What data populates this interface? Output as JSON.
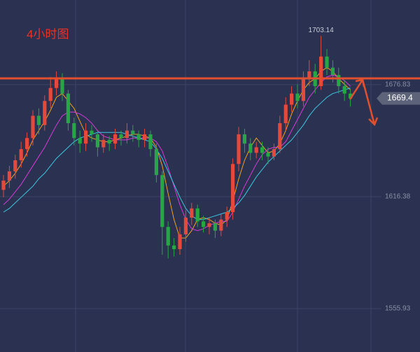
{
  "chart_data": {
    "type": "candlestick",
    "title": "4小时图",
    "categories": [
      null,
      null,
      null,
      null,
      null,
      null,
      null,
      null,
      null,
      null,
      null,
      null,
      null,
      null,
      null,
      null,
      null,
      null,
      null,
      null,
      null,
      null,
      null,
      null,
      null,
      null,
      null,
      null,
      null,
      null,
      null,
      null,
      null,
      null,
      null,
      null,
      null,
      null,
      null,
      null,
      null,
      null,
      null,
      null,
      null,
      null,
      null,
      null,
      null,
      null,
      null,
      null,
      null,
      null,
      null,
      null,
      null,
      null,
      null,
      null
    ],
    "open": [
      1620,
      1625,
      1630,
      1636,
      1642,
      1648,
      1660,
      1655,
      1668,
      1675,
      1680,
      1672,
      1656,
      1648,
      1645,
      1652,
      1650,
      1643,
      1647,
      1645,
      1650,
      1648,
      1652,
      1650,
      1647,
      1650,
      1642,
      1628,
      1600,
      1590,
      1588,
      1596,
      1605,
      1610,
      1603,
      1600,
      1602,
      1598,
      1604,
      1608,
      1634,
      1650,
      1645,
      1640,
      1643,
      1640,
      1638,
      1642,
      1656,
      1666,
      1672,
      1668,
      1680,
      1684,
      1676,
      1692,
      1686,
      1682,
      1676,
      1672
    ],
    "high": [
      1628,
      1633,
      1639,
      1646,
      1651,
      1663,
      1664,
      1671,
      1681,
      1684,
      1683,
      1674,
      1659,
      1652,
      1656,
      1655,
      1652,
      1650,
      1649,
      1653,
      1652,
      1656,
      1655,
      1652,
      1653,
      1652,
      1645,
      1630,
      1603,
      1594,
      1600,
      1609,
      1613,
      1612,
      1606,
      1605,
      1604,
      1607,
      1611,
      1637,
      1654,
      1653,
      1648,
      1646,
      1646,
      1643,
      1645,
      1660,
      1670,
      1676,
      1677,
      1684,
      1690,
      1688,
      1703.14,
      1696,
      1690,
      1686,
      1679,
      1674
    ],
    "low": [
      1616,
      1621,
      1626,
      1632,
      1638,
      1644,
      1650,
      1652,
      1664,
      1671,
      1668,
      1652,
      1644,
      1640,
      1641,
      1646,
      1638,
      1640,
      1641,
      1642,
      1644,
      1645,
      1646,
      1643,
      1643,
      1638,
      1624,
      1585,
      1583,
      1584,
      1585,
      1592,
      1601,
      1600,
      1597,
      1596,
      1594,
      1595,
      1600,
      1604,
      1630,
      1640,
      1636,
      1637,
      1636,
      1634,
      1636,
      1640,
      1652,
      1662,
      1664,
      1665,
      1676,
      1672,
      1674,
      1682,
      1678,
      1672,
      1668,
      1665
    ],
    "close": [
      1625,
      1630,
      1636,
      1642,
      1648,
      1660,
      1655,
      1668,
      1675,
      1680,
      1672,
      1656,
      1648,
      1645,
      1652,
      1650,
      1643,
      1647,
      1645,
      1650,
      1648,
      1652,
      1650,
      1647,
      1650,
      1642,
      1628,
      1600,
      1590,
      1588,
      1596,
      1605,
      1610,
      1603,
      1600,
      1602,
      1598,
      1604,
      1608,
      1634,
      1650,
      1645,
      1640,
      1643,
      1640,
      1638,
      1642,
      1656,
      1666,
      1672,
      1668,
      1680,
      1684,
      1676,
      1692,
      1686,
      1682,
      1676,
      1672,
      1669.4
    ],
    "up_color": "#e5493c",
    "down_color": "#27a646",
    "series": [
      {
        "color": "#f0a020",
        "values": [
          1622,
          1625,
          1629,
          1634,
          1640,
          1647,
          1652,
          1657,
          1663,
          1670,
          1672,
          1668,
          1664,
          1657,
          1650,
          1648,
          1647,
          1646,
          1646,
          1647,
          1648,
          1649,
          1650,
          1650,
          1649,
          1648,
          1643,
          1633,
          1618,
          1604,
          1594,
          1594,
          1598,
          1604,
          1605,
          1604,
          1602,
          1601,
          1604,
          1614,
          1626,
          1636,
          1643,
          1648,
          1644,
          1640,
          1641,
          1645,
          1652,
          1661,
          1668,
          1674,
          1678,
          1680,
          1684,
          1686,
          1684,
          1680,
          1677,
          1674
        ]
      },
      {
        "color": "#d63ad8",
        "values": [
          1612,
          1615,
          1619,
          1623,
          1628,
          1633,
          1638,
          1643,
          1649,
          1655,
          1660,
          1662,
          1662,
          1661,
          1659,
          1656,
          1652,
          1649,
          1648,
          1647,
          1647,
          1647,
          1648,
          1648,
          1648,
          1648,
          1646,
          1641,
          1632,
          1622,
          1612,
          1604,
          1599,
          1598,
          1599,
          1601,
          1602,
          1603,
          1603,
          1608,
          1615,
          1622,
          1628,
          1634,
          1639,
          1642,
          1643,
          1643,
          1646,
          1652,
          1658,
          1664,
          1670,
          1674,
          1678,
          1681,
          1682,
          1681,
          1679,
          1676
        ]
      },
      {
        "color": "#3cc8e0",
        "values": [
          1608,
          1610,
          1613,
          1616,
          1619,
          1622,
          1626,
          1629,
          1633,
          1637,
          1640,
          1643,
          1646,
          1648,
          1649,
          1650,
          1651,
          1651,
          1651,
          1651,
          1651,
          1650,
          1649,
          1648,
          1647,
          1646,
          1642,
          1637,
          1630,
          1623,
          1616,
          1610,
          1606,
          1604,
          1604,
          1605,
          1606,
          1607,
          1608,
          1610,
          1613,
          1617,
          1622,
          1627,
          1631,
          1635,
          1638,
          1641,
          1644,
          1647,
          1651,
          1655,
          1660,
          1664,
          1667,
          1670,
          1672,
          1673,
          1674,
          1675
        ]
      }
    ],
    "resistance": 1680.2,
    "resistance_color": "#e0502e",
    "ylim": [
      1532.5,
      1722.5
    ],
    "yticks": [
      1555.93,
      1616.38,
      1676.83
    ],
    "grid": true
  }
}
